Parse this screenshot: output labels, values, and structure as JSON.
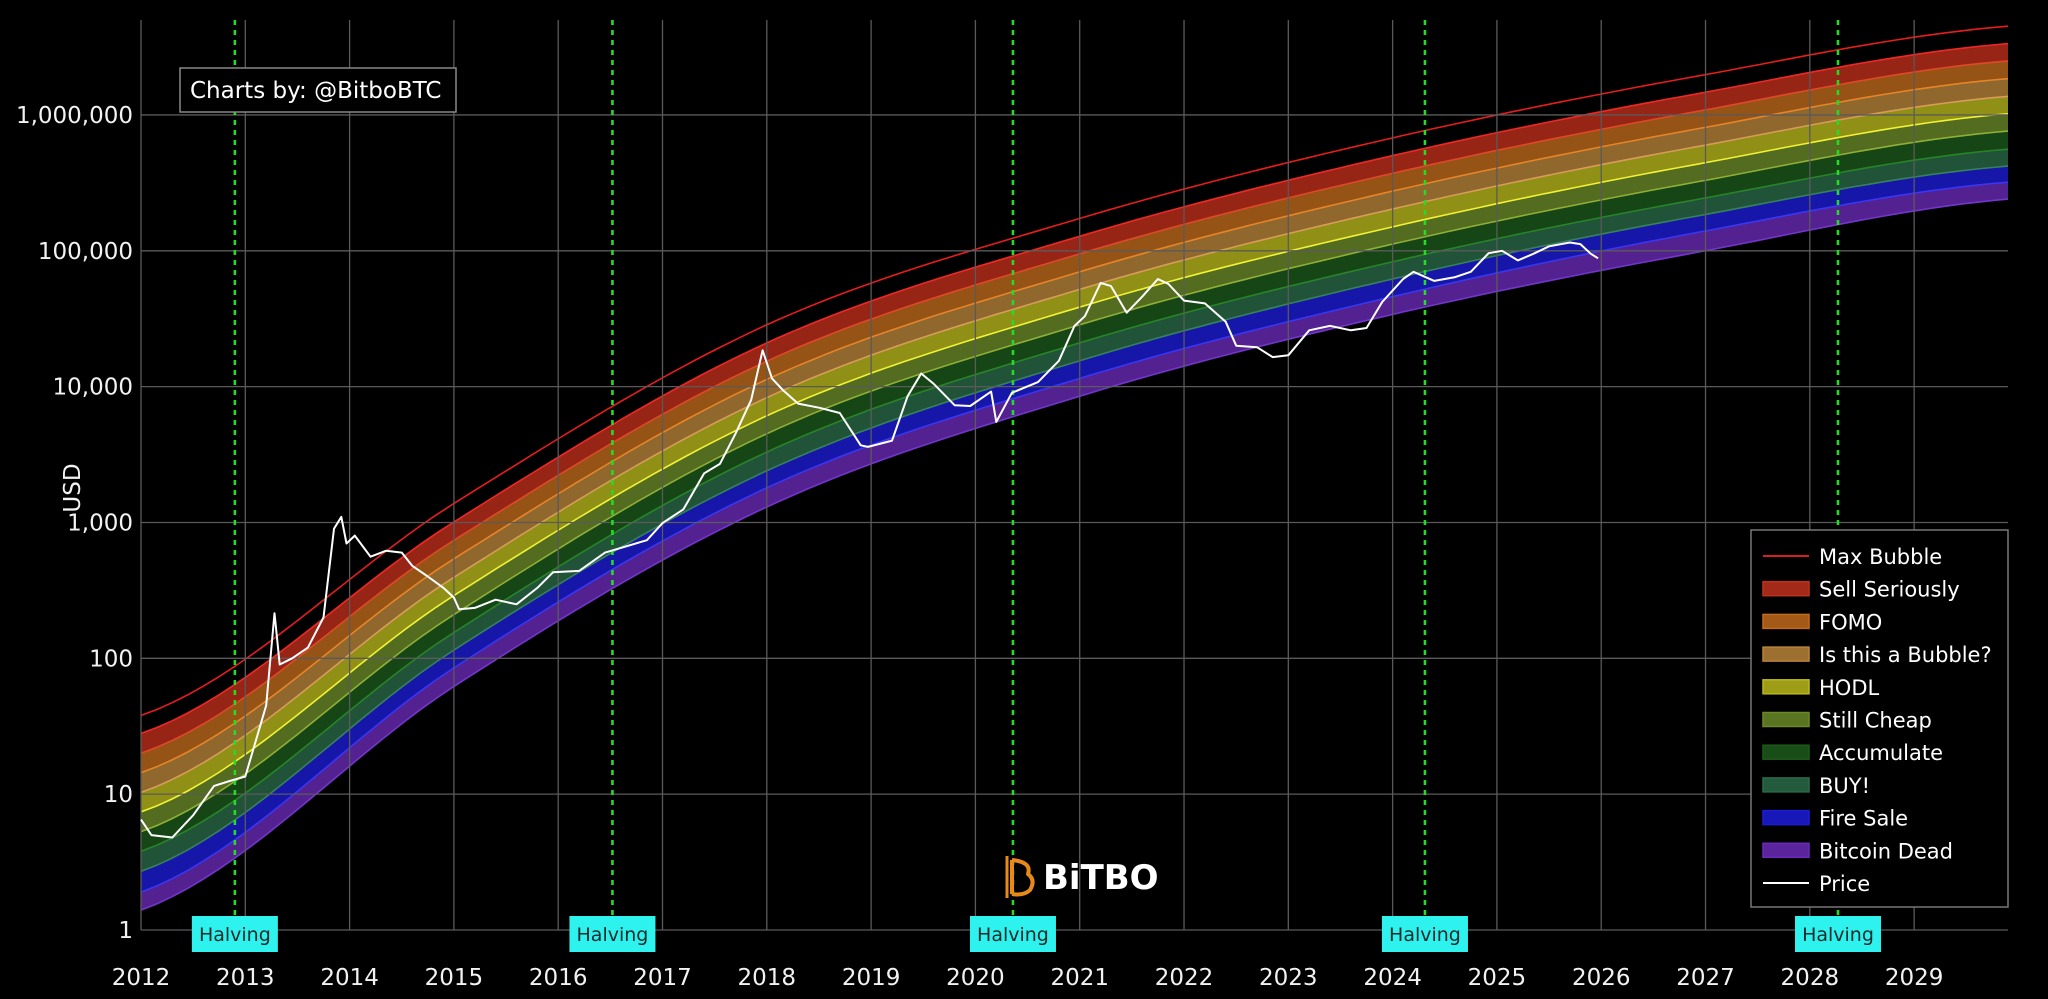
{
  "chart_data": {
    "type": "area",
    "title": "",
    "xlabel": "",
    "ylabel": "USD",
    "y_scale": "log",
    "xlim": [
      2012,
      2029.9
    ],
    "ylim": [
      1,
      5000000
    ],
    "x_ticks": [
      "2012",
      "2013",
      "2014",
      "2015",
      "2016",
      "2017",
      "2018",
      "2019",
      "2020",
      "2021",
      "2022",
      "2023",
      "2024",
      "2025",
      "2026",
      "2027",
      "2028",
      "2029"
    ],
    "y_ticks": [
      {
        "value": 1,
        "label": "1"
      },
      {
        "value": 10,
        "label": "10"
      },
      {
        "value": 100,
        "label": "100"
      },
      {
        "value": 1000,
        "label": "1,000"
      },
      {
        "value": 10000,
        "label": "10,000"
      },
      {
        "value": 100000,
        "label": "100,000"
      },
      {
        "value": 1000000,
        "label": "1,000,000"
      }
    ],
    "grid": true,
    "legend_position": "bottom-right",
    "credit": "Charts by: @BitboBTC",
    "logo_text": "BiTBO",
    "halving_label": "Halving",
    "halvings": [
      2012.9,
      2016.52,
      2020.36,
      2024.31,
      2028.27
    ],
    "rainbow_bands": {
      "boundaries_at_x": [
        2012.0,
        2015.0,
        2018.0,
        2021.0,
        2024.0,
        2027.0,
        2029.9
      ],
      "boundaries": [
        [
          1.4,
          62,
          1300,
          8500,
          34000,
          100000,
          240000
        ],
        [
          1.9,
          85,
          1800,
          11500,
          46000,
          140000,
          320000
        ],
        [
          2.7,
          115,
          2400,
          15500,
          62000,
          185000,
          420000
        ],
        [
          3.8,
          155,
          3300,
          21000,
          83000,
          245000,
          560000
        ],
        [
          5.3,
          210,
          4500,
          28500,
          112000,
          330000,
          760000
        ],
        [
          7.4,
          290,
          6100,
          38500,
          150000,
          445000,
          1020000
        ],
        [
          10.3,
          395,
          8300,
          52000,
          203000,
          600000,
          1370000
        ],
        [
          14.4,
          540,
          11300,
          70000,
          275000,
          810000,
          1850000
        ],
        [
          20,
          740,
          15400,
          95000,
          372000,
          1090000,
          2500000
        ],
        [
          28,
          1010,
          21000,
          128000,
          502000,
          1470000,
          3350000
        ],
        [
          38,
          1380,
          28500,
          173000,
          678000,
          1980000,
          4500000
        ]
      ]
    },
    "series": [
      {
        "name": "Max Bubble",
        "color": "#d62020",
        "kind": "line"
      },
      {
        "name": "Sell Seriously",
        "color": "#c0301c",
        "kind": "band"
      },
      {
        "name": "FOMO",
        "color": "#c06a1c",
        "kind": "band"
      },
      {
        "name": "Is this a Bubble?",
        "color": "#b8843a",
        "kind": "band"
      },
      {
        "name": "HODL",
        "color": "#b8b81c",
        "kind": "band"
      },
      {
        "name": "Still Cheap",
        "color": "#6a8a28",
        "kind": "band"
      },
      {
        "name": "Accumulate",
        "color": "#1c5a1c",
        "kind": "band"
      },
      {
        "name": "BUY!",
        "color": "#2a6a48",
        "kind": "band"
      },
      {
        "name": "Fire Sale",
        "color": "#1c1cd8",
        "kind": "band"
      },
      {
        "name": "Bitcoin Dead",
        "color": "#6a2ab8",
        "kind": "band"
      },
      {
        "name": "Price",
        "color": "#ffffff",
        "kind": "line",
        "x": [
          2012.0,
          2012.1,
          2012.3,
          2012.5,
          2012.7,
          2012.85,
          2013.0,
          2013.2,
          2013.28,
          2013.33,
          2013.45,
          2013.6,
          2013.75,
          2013.85,
          2013.92,
          2013.97,
          2014.05,
          2014.2,
          2014.35,
          2014.5,
          2014.6,
          2014.75,
          2014.9,
          2015.0,
          2015.05,
          2015.2,
          2015.4,
          2015.6,
          2015.8,
          2015.95,
          2016.2,
          2016.45,
          2016.6,
          2016.85,
          2017.0,
          2017.2,
          2017.4,
          2017.55,
          2017.7,
          2017.85,
          2017.96,
          2018.05,
          2018.15,
          2018.3,
          2018.5,
          2018.7,
          2018.9,
          2018.97,
          2019.2,
          2019.35,
          2019.48,
          2019.6,
          2019.8,
          2019.95,
          2020.15,
          2020.2,
          2020.35,
          2020.6,
          2020.8,
          2020.95,
          2021.05,
          2021.2,
          2021.3,
          2021.45,
          2021.6,
          2021.75,
          2021.85,
          2022.0,
          2022.2,
          2022.4,
          2022.5,
          2022.7,
          2022.85,
          2023.0,
          2023.2,
          2023.4,
          2023.6,
          2023.75,
          2023.9,
          2024.1,
          2024.2,
          2024.4,
          2024.6,
          2024.75,
          2024.92,
          2025.05,
          2025.2,
          2025.35,
          2025.5,
          2025.7,
          2025.8,
          2025.9,
          2025.97
        ],
        "values": [
          6.5,
          5.0,
          4.8,
          7.0,
          11.5,
          12.5,
          13.5,
          45,
          215,
          90,
          100,
          120,
          200,
          900,
          1100,
          700,
          800,
          560,
          620,
          600,
          480,
          400,
          330,
          280,
          230,
          235,
          270,
          250,
          330,
          430,
          440,
          600,
          650,
          740,
          990,
          1250,
          2300,
          2700,
          4500,
          8000,
          18500,
          11500,
          9500,
          7500,
          7000,
          6400,
          3700,
          3600,
          4000,
          8500,
          12500,
          10500,
          7300,
          7200,
          9200,
          5500,
          9000,
          10800,
          15500,
          28000,
          33000,
          58000,
          55000,
          35000,
          46000,
          62000,
          57000,
          43000,
          41000,
          30000,
          20000,
          19500,
          16500,
          17000,
          26000,
          28000,
          26000,
          27000,
          42000,
          62000,
          70000,
          60000,
          64000,
          70000,
          96000,
          100000,
          85000,
          95000,
          108000,
          115000,
          112000,
          95000,
          88000
        ]
      }
    ]
  }
}
